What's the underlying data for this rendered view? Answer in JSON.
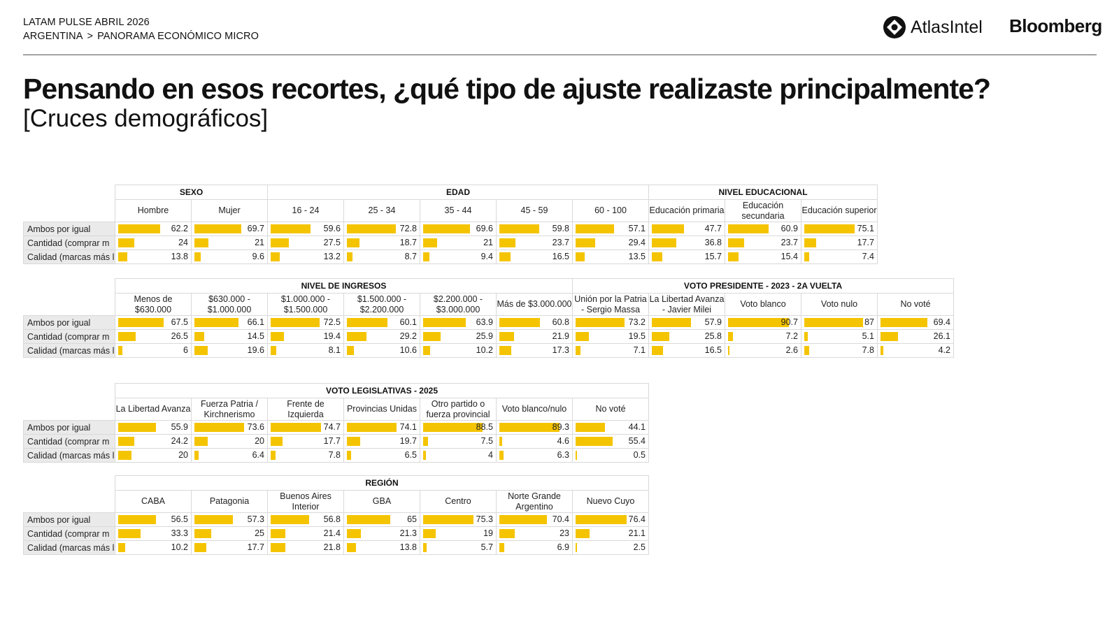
{
  "header": {
    "line1": "LATAM PULSE ABRIL 2026",
    "breadcrumb_root": "ARGENTINA",
    "breadcrumb_sep": ">",
    "breadcrumb_leaf": "PANORAMA ECONÓMICO MICRO",
    "logo_atlas": "AtlasIntel",
    "logo_bloomberg": "Bloomberg"
  },
  "title": "Pensando en esos recortes, ¿qué tipo de ajuste realizaste principalmente?",
  "subtitle": "[Cruces demográficos]",
  "colors": {
    "bar": "#f5c400",
    "row_label_bg": "#eaeaea",
    "border": "#d9d9d9"
  },
  "chart_data": {
    "type": "table",
    "max_value": 100,
    "row_labels": [
      "Ambos por igual",
      "Cantidad (comprar m",
      "Calidad (marcas más l"
    ],
    "tables": [
      {
        "groups": [
          {
            "label": "SEXO",
            "span": 2
          },
          {
            "label": "EDAD",
            "span": 5
          },
          {
            "label": "NIVEL EDUCACIONAL",
            "span": 3
          }
        ],
        "columns": [
          "Hombre",
          "Mujer",
          "16 - 24",
          "25 - 34",
          "35 - 44",
          "45 - 59",
          "60 - 100",
          "Educación primaria",
          "Educación secundaria",
          "Educación superior"
        ],
        "values": [
          [
            62.2,
            69.7,
            59.6,
            72.8,
            69.6,
            59.8,
            57.1,
            47.7,
            60.9,
            75.1
          ],
          [
            24,
            21,
            27.5,
            18.7,
            21,
            23.7,
            29.4,
            36.8,
            23.7,
            17.7
          ],
          [
            13.8,
            9.6,
            13.2,
            8.7,
            9.4,
            16.5,
            13.5,
            15.7,
            15.4,
            7.4
          ]
        ]
      },
      {
        "groups": [
          {
            "label": "NIVEL DE INGRESOS",
            "span": 6
          },
          {
            "label": "VOTO PRESIDENTE - 2023 - 2A VUELTA",
            "span": 5
          }
        ],
        "columns": [
          "Menos de $630.000",
          "$630.000 - $1.000.000",
          "$1.000.000 - $1.500.000",
          "$1.500.000 - $2.200.000",
          "$2.200.000 - $3.000.000",
          "Más de $3.000.000",
          "Unión por la Patria - Sergio Massa",
          "La Libertad Avanza - Javier Milei",
          "Voto blanco",
          "Voto nulo",
          "No voté"
        ],
        "values": [
          [
            67.5,
            66.1,
            72.5,
            60.1,
            63.9,
            60.8,
            73.2,
            57.9,
            90.7,
            87,
            69.4
          ],
          [
            26.5,
            14.5,
            19.4,
            29.2,
            25.9,
            21.9,
            19.5,
            25.8,
            7.2,
            5.1,
            26.1
          ],
          [
            6,
            19.6,
            8.1,
            10.6,
            10.2,
            17.3,
            7.1,
            16.5,
            2.6,
            7.8,
            4.2
          ]
        ]
      },
      {
        "groups": [
          {
            "label": "VOTO LEGISLATIVAS - 2025",
            "span": 7
          }
        ],
        "columns": [
          "La Libertad Avanza",
          "Fuerza Patria / Kirchnerismo",
          "Frente de Izquierda",
          "Provincias Unidas",
          "Otro partido o fuerza provincial",
          "Voto blanco/nulo",
          "No voté"
        ],
        "values": [
          [
            55.9,
            73.6,
            74.7,
            74.1,
            88.5,
            89.3,
            44.1
          ],
          [
            24.2,
            20,
            17.7,
            19.7,
            7.5,
            4.6,
            55.4
          ],
          [
            20,
            6.4,
            7.8,
            6.5,
            4,
            6.3,
            0.5
          ]
        ]
      },
      {
        "groups": [
          {
            "label": "REGIÓN",
            "span": 7
          }
        ],
        "columns": [
          "CABA",
          "Patagonia",
          "Buenos Aires Interior",
          "GBA",
          "Centro",
          "Norte Grande Argentino",
          "Nuevo Cuyo"
        ],
        "values": [
          [
            56.5,
            57.3,
            56.8,
            65,
            75.3,
            70.4,
            76.4
          ],
          [
            33.3,
            25,
            21.4,
            21.3,
            19,
            23,
            21.1
          ],
          [
            10.2,
            17.7,
            21.8,
            13.8,
            5.7,
            6.9,
            2.5
          ]
        ]
      }
    ]
  }
}
